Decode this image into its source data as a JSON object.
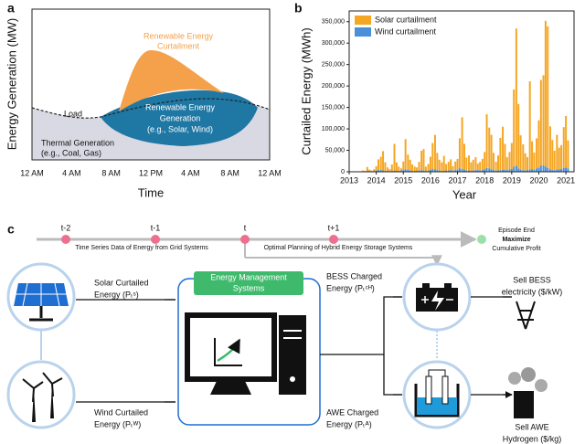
{
  "panel_labels": [
    "a",
    "b",
    "c"
  ],
  "panel_a": {
    "ylabel": "Energy Generation (MW)",
    "xlabel": "Time",
    "xticks": [
      "12 AM",
      "4 AM",
      "8 AM",
      "12 PM",
      "4 AM",
      "8 AM",
      "12 AM"
    ],
    "curtailment": [
      "Renewable Energy",
      "Curtailment"
    ],
    "load": "Load",
    "renewable": [
      "Renewable Energy",
      "Generation",
      "(e.g., Solar, Wind)"
    ],
    "thermal": [
      "Thermal Generation",
      "(e.g., Coal, Gas)"
    ]
  },
  "chart_data": {
    "type": "bar",
    "stacked": true,
    "ylabel": "Curtailed Energy (MWh)",
    "xlabel": "Year",
    "x": [
      2013.5,
      2013.58,
      2013.67,
      2013.75,
      2013.83,
      2013.92,
      2014,
      2014.08,
      2014.17,
      2014.25,
      2014.33,
      2014.42,
      2014.5,
      2014.58,
      2014.67,
      2014.75,
      2014.83,
      2014.92,
      2015,
      2015.08,
      2015.17,
      2015.25,
      2015.33,
      2015.42,
      2015.5,
      2015.58,
      2015.67,
      2015.75,
      2015.83,
      2015.92,
      2016,
      2016.08,
      2016.17,
      2016.25,
      2016.33,
      2016.42,
      2016.5,
      2016.58,
      2016.67,
      2016.75,
      2016.83,
      2016.92,
      2017,
      2017.08,
      2017.17,
      2017.25,
      2017.33,
      2017.42,
      2017.5,
      2017.58,
      2017.67,
      2017.75,
      2017.83,
      2017.92,
      2018,
      2018.08,
      2018.17,
      2018.25,
      2018.33,
      2018.42,
      2018.5,
      2018.58,
      2018.67,
      2018.75,
      2018.83,
      2018.92,
      2019,
      2019.08,
      2019.17,
      2019.25,
      2019.33,
      2019.42,
      2019.5,
      2019.58,
      2019.67,
      2019.75,
      2019.83,
      2019.92,
      2020,
      2020.08,
      2020.17,
      2020.25,
      2020.33,
      2020.42,
      2020.5,
      2020.58,
      2020.67,
      2020.75,
      2020.83,
      2020.92,
      2021,
      2021.08
    ],
    "series": [
      {
        "name": "Solar curtailment",
        "color": "#f5a623",
        "values": [
          2000,
          1000,
          9000,
          3000,
          2000,
          4000,
          10000,
          25000,
          30000,
          45000,
          20000,
          8000,
          5000,
          15000,
          62000,
          20000,
          10000,
          5000,
          20000,
          70000,
          35000,
          25000,
          15000,
          10000,
          8000,
          20000,
          45000,
          50000,
          10000,
          15000,
          30000,
          60000,
          80000,
          40000,
          25000,
          20000,
          35000,
          15000,
          20000,
          25000,
          10000,
          20000,
          25000,
          70000,
          120000,
          60000,
          30000,
          35000,
          20000,
          25000,
          30000,
          15000,
          20000,
          25000,
          40000,
          125000,
          95000,
          80000,
          40000,
          20000,
          35000,
          75000,
          100000,
          60000,
          30000,
          40000,
          60000,
          180000,
          320000,
          150000,
          80000,
          60000,
          40000,
          30000,
          205000,
          65000,
          40000,
          70000,
          110000,
          200000,
          210000,
          340000,
          330000,
          100000,
          70000,
          45000,
          80000,
          50000,
          55000,
          95000,
          120000,
          65000
        ]
      },
      {
        "name": "Wind curtailment",
        "color": "#4a90d9",
        "values": [
          1000,
          1000,
          2000,
          2000,
          1000,
          2000,
          3000,
          4000,
          5000,
          3000,
          2000,
          2000,
          1000,
          2000,
          3000,
          2000,
          2000,
          3000,
          4000,
          6000,
          5000,
          3000,
          2000,
          2000,
          2000,
          3000,
          4000,
          3000,
          2000,
          3000,
          5000,
          7000,
          6000,
          4000,
          3000,
          2000,
          2000,
          3000,
          3000,
          4000,
          3000,
          4000,
          5000,
          8000,
          7000,
          5000,
          3000,
          3000,
          2000,
          3000,
          4000,
          4000,
          3000,
          5000,
          6000,
          9000,
          8000,
          6000,
          4000,
          3000,
          3000,
          4000,
          5000,
          5000,
          4000,
          6000,
          7000,
          12000,
          14000,
          8000,
          5000,
          4000,
          3000,
          4000,
          6000,
          6000,
          5000,
          8000,
          10000,
          14000,
          15000,
          12000,
          9000,
          6000,
          4000,
          4000,
          6000,
          6000,
          7000,
          9000,
          10000,
          8000
        ]
      }
    ],
    "xlim": [
      2013,
      2021.3
    ],
    "xticks": [
      2013,
      2014,
      2015,
      2016,
      2017,
      2018,
      2019,
      2020,
      2021
    ],
    "ylim": [
      0,
      375000
    ],
    "yticks": [
      0,
      {
        "value": 50000,
        "label": "50,000"
      },
      {
        "value": 100000,
        "label": "100,000"
      },
      {
        "value": 150000,
        "label": "150,000"
      },
      {
        "value": 200000,
        "label": "200,000"
      },
      {
        "value": 250000,
        "label": "250,000"
      },
      {
        "value": 300000,
        "label": "300,000"
      },
      {
        "value": 350000,
        "label": "350,000"
      }
    ],
    "legend": "upper left"
  },
  "panel_c": {
    "timeline": [
      "t-2",
      "t-1",
      "t",
      "t+1"
    ],
    "episode_end": [
      "Episode End",
      "Maximize",
      "Cumulative Profit"
    ],
    "grid_data": "Time Series Data of Energy from Grid Systems",
    "planning": "Optimal Planning of Hybrid Energy Storage Systems",
    "solar": [
      "Solar Curtailed",
      "Energy (Pₜˢ)"
    ],
    "wind": [
      "Wind Curtailed",
      "Energy (Pₜᵂ)"
    ],
    "ems": [
      "Energy Management",
      "Systems"
    ],
    "bess": [
      "BESS Charged",
      "Energy (Pₜᶜᴴ)"
    ],
    "awe": [
      "AWE Charged",
      "Energy (Pₜᴬ)"
    ],
    "sell_bess": [
      "Sell BESS",
      "electricity ($/kW)"
    ],
    "sell_awe": [
      "Sell AWE",
      "Hydrogen ($/kg)"
    ]
  }
}
